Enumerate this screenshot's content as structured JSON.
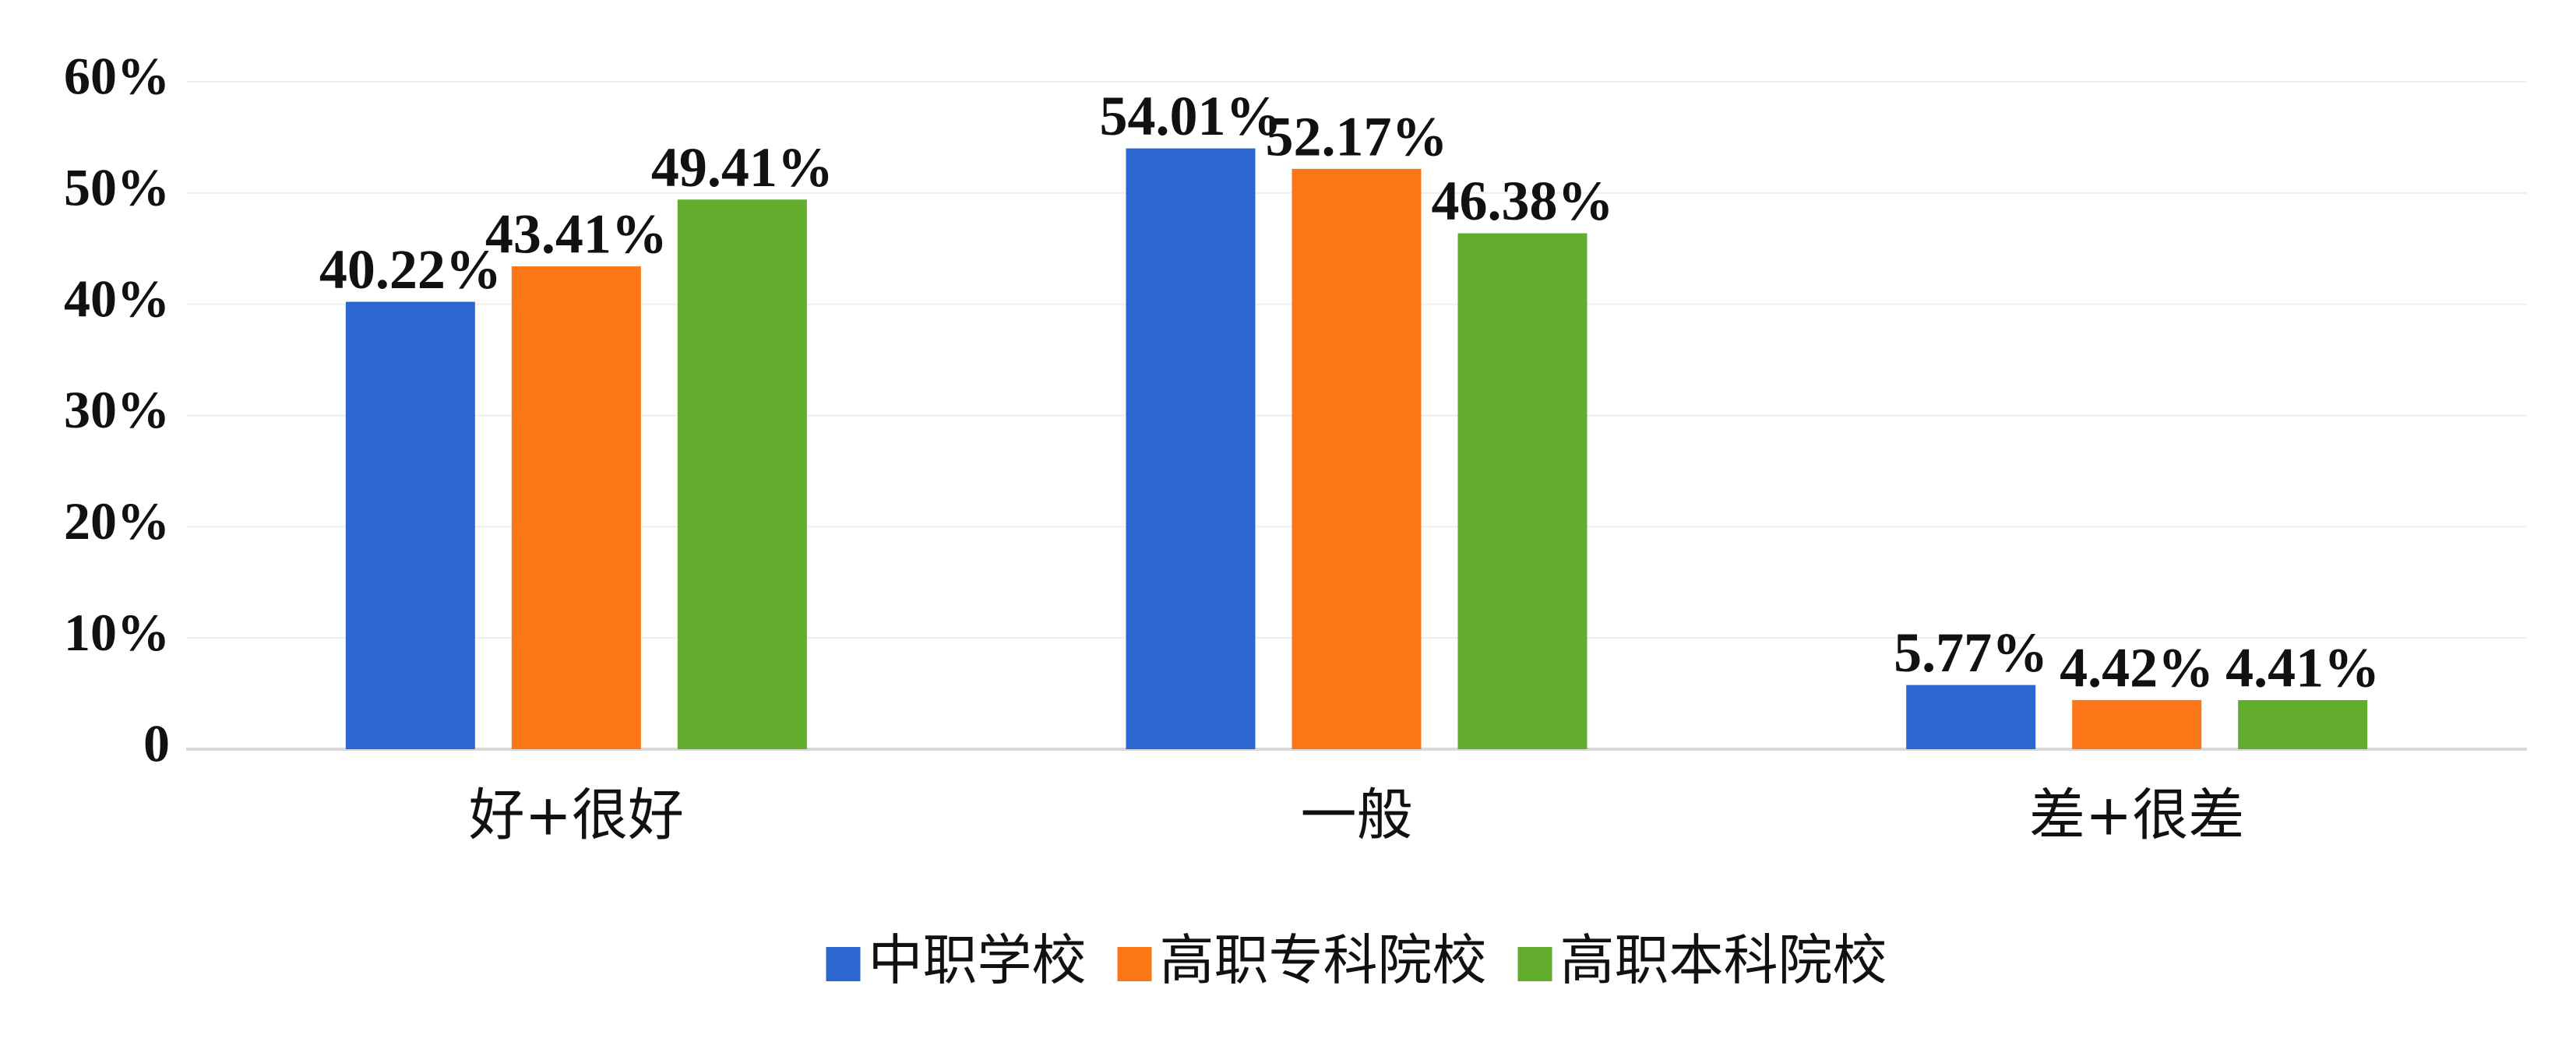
{
  "chart_data": {
    "type": "bar",
    "categories": [
      "好+很好",
      "一般",
      "差+很差"
    ],
    "series": [
      {
        "name": "中职学校",
        "color": "#2b67cf",
        "values": [
          40.22,
          54.01,
          5.77
        ],
        "value_labels": [
          "40.22%",
          "54.01%",
          "5.77%"
        ]
      },
      {
        "name": "高职专科院校",
        "color": "#fb7717",
        "values": [
          43.41,
          52.17,
          4.42
        ],
        "value_labels": [
          "43.41%",
          "52.17%",
          "4.42%"
        ]
      },
      {
        "name": "高职本科院校",
        "color": "#62ad2e",
        "values": [
          49.41,
          46.38,
          4.41
        ],
        "value_labels": [
          "49.41%",
          "46.38%",
          "4.41%"
        ]
      }
    ],
    "ylim": [
      0,
      60
    ],
    "yticks": [
      0,
      {
        "value": 10,
        "label": "10%"
      },
      {
        "value": 20,
        "label": "20%"
      },
      {
        "value": 30,
        "label": "30%"
      },
      {
        "value": 40,
        "label": "40%"
      },
      {
        "value": 50,
        "label": "50%"
      },
      {
        "value": 60,
        "label": "60%"
      }
    ],
    "grid": true,
    "legend": "bottom"
  }
}
